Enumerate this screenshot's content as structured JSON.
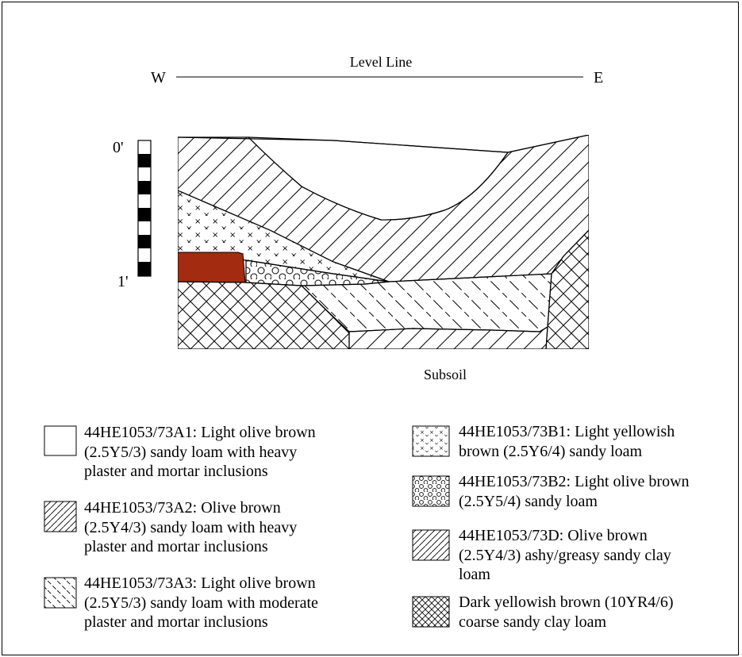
{
  "profile": {
    "level_line_label": "Level Line",
    "west_label": "W",
    "east_label": "E",
    "scale_top_label": "0'",
    "scale_bottom_label": "1'",
    "subsoil_label": "Subsoil"
  },
  "legend": [
    {
      "pattern": "blank",
      "text": "44HE1053/73A1: Light olive brown\n(2.5Y5/3) sandy loam with heavy\nplaster and mortar inclusions"
    },
    {
      "pattern": "diagonal-hatch",
      "text": "44HE1053/73A2: Olive brown\n(2.5Y4/3) sandy loam with heavy\nplaster and mortar inclusions"
    },
    {
      "pattern": "reverse-dashed-hatch",
      "text": "44HE1053/73A3: Light olive brown\n(2.5Y5/3) sandy loam with moderate\nplaster and mortar inclusions"
    },
    {
      "pattern": "crosses",
      "text": "44HE1053/73B1: Light yellowish\nbrown (2.5Y6/4) sandy loam"
    },
    {
      "pattern": "circles",
      "text": "44HE1053/73B2: Light olive brown\n(2.5Y5/4) sandy loam"
    },
    {
      "pattern": "diagonal-hatch",
      "text": "44HE1053/73D: Olive brown\n(2.5Y4/3) ashy/greasy sandy clay\nloam"
    },
    {
      "pattern": "cross-hatch",
      "text": "Dark yellowish brown (10YR4/6)\ncoarse sandy clay loam"
    }
  ],
  "colors": {
    "brick_feature": "#a32b0f",
    "line": "#000000"
  }
}
